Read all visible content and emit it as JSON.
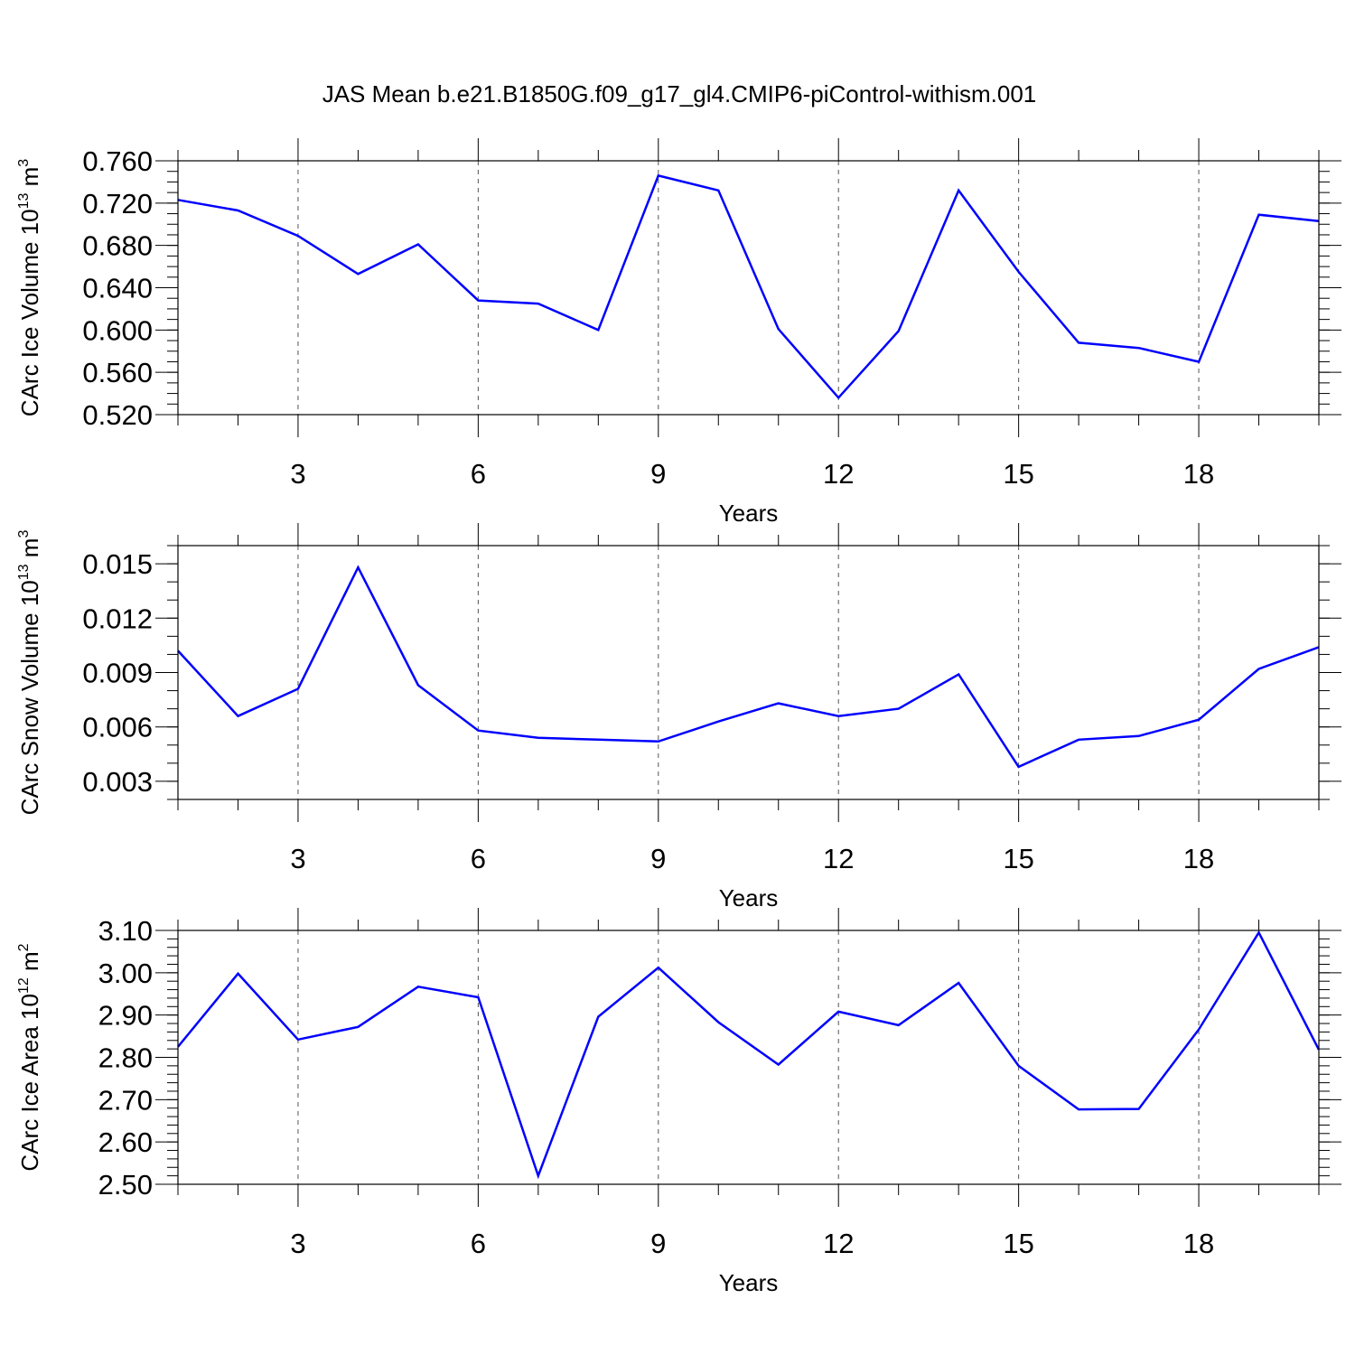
{
  "figure": {
    "title": "JAS Mean b.e21.B1850G.f09_g17_gl4.CMIP6-piControl-withism.001",
    "series_color": "#0000ff"
  },
  "chart_data": [
    {
      "type": "line",
      "ylabel": {
        "text": "CArc Ice Volume 10",
        "exp": "13",
        "unit": " m",
        "unit_exp": "3"
      },
      "xlabel": "Years",
      "xlim": [
        1,
        20
      ],
      "ylim": [
        0.52,
        0.76
      ],
      "x_ticks": [
        3,
        6,
        9,
        12,
        15,
        18
      ],
      "x_tick_labels": [
        "3",
        "6",
        "9",
        "12",
        "15",
        "18"
      ],
      "y_ticks": [
        0.52,
        0.56,
        0.6,
        0.64,
        0.68,
        0.72,
        0.76
      ],
      "y_tick_labels": [
        "0.520",
        "0.560",
        "0.600",
        "0.640",
        "0.680",
        "0.720",
        "0.760"
      ],
      "y_minor_step": 0.01,
      "grid": "vertical-dashed-at-major-x",
      "x": [
        1,
        2,
        3,
        4,
        5,
        6,
        7,
        8,
        9,
        10,
        11,
        12,
        13,
        14,
        15,
        16,
        17,
        18,
        19,
        20
      ],
      "y": [
        0.723,
        0.713,
        0.689,
        0.653,
        0.681,
        0.628,
        0.625,
        0.6,
        0.746,
        0.732,
        0.601,
        0.536,
        0.599,
        0.732,
        0.655,
        0.588,
        0.583,
        0.57,
        0.709,
        0.703
      ]
    },
    {
      "type": "line",
      "ylabel": {
        "text": "CArc Snow Volume 10",
        "exp": "13",
        "unit": " m",
        "unit_exp": "3"
      },
      "xlabel": "Years",
      "xlim": [
        1,
        20
      ],
      "ylim": [
        0.002,
        0.016
      ],
      "x_ticks": [
        3,
        6,
        9,
        12,
        15,
        18
      ],
      "x_tick_labels": [
        "3",
        "6",
        "9",
        "12",
        "15",
        "18"
      ],
      "y_ticks": [
        0.003,
        0.006,
        0.009,
        0.012,
        0.015
      ],
      "y_tick_labels": [
        "0.003",
        "0.006",
        "0.009",
        "0.012",
        "0.015"
      ],
      "y_minor_step": 0.001,
      "grid": "vertical-dashed-at-major-x",
      "x": [
        1,
        2,
        3,
        4,
        5,
        6,
        7,
        8,
        9,
        10,
        11,
        12,
        13,
        14,
        15,
        16,
        17,
        18,
        19,
        20
      ],
      "y": [
        0.0102,
        0.0066,
        0.0081,
        0.0148,
        0.0083,
        0.0058,
        0.0054,
        0.0053,
        0.0052,
        0.0063,
        0.0073,
        0.0066,
        0.007,
        0.0089,
        0.0038,
        0.0053,
        0.0055,
        0.0064,
        0.0092,
        0.0104
      ]
    },
    {
      "type": "line",
      "ylabel": {
        "text": "CArc Ice Area 10",
        "exp": "12",
        "unit": " m",
        "unit_exp": "2"
      },
      "xlabel": "Years",
      "xlim": [
        1,
        20
      ],
      "ylim": [
        2.5,
        3.1
      ],
      "x_ticks": [
        3,
        6,
        9,
        12,
        15,
        18
      ],
      "x_tick_labels": [
        "3",
        "6",
        "9",
        "12",
        "15",
        "18"
      ],
      "y_ticks": [
        2.5,
        2.6,
        2.7,
        2.8,
        2.9,
        3.0,
        3.1
      ],
      "y_tick_labels": [
        "2.50",
        "2.60",
        "2.70",
        "2.80",
        "2.90",
        "3.00",
        "3.10"
      ],
      "y_minor_step": 0.02,
      "grid": "vertical-dashed-at-major-x",
      "x": [
        1,
        2,
        3,
        4,
        5,
        6,
        7,
        8,
        9,
        10,
        11,
        12,
        13,
        14,
        15,
        16,
        17,
        18,
        19,
        20
      ],
      "y": [
        2.825,
        2.998,
        2.842,
        2.872,
        2.967,
        2.942,
        2.52,
        2.896,
        3.012,
        2.883,
        2.783,
        2.908,
        2.876,
        2.976,
        2.78,
        2.677,
        2.678,
        2.866,
        3.095,
        2.818
      ]
    }
  ]
}
